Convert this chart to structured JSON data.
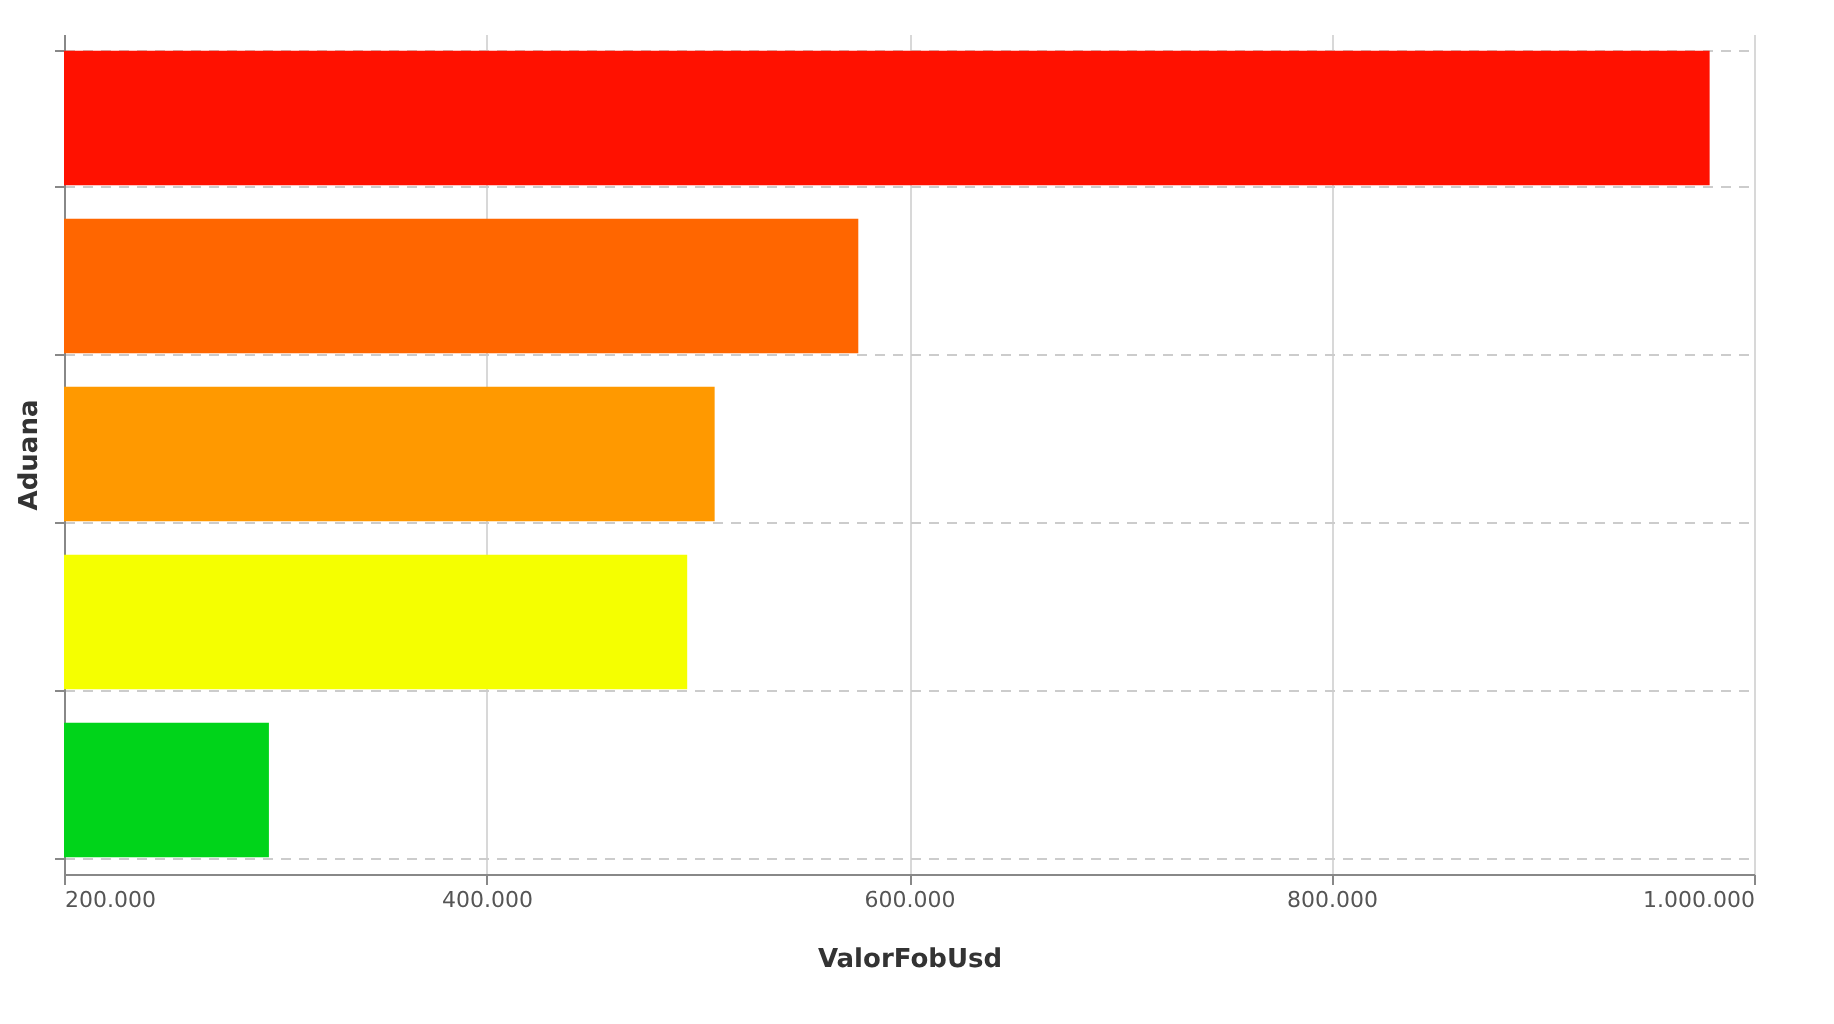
{
  "chart_data": {
    "type": "bar",
    "orientation": "horizontal",
    "xlabel": "ValorFobUsd",
    "ylabel": "Aduana",
    "categories": [
      null,
      null,
      null,
      null,
      null
    ],
    "values": [
      979000,
      576000,
      508000,
      495000,
      297000
    ],
    "colors": [
      "#ff1100",
      "#ff6600",
      "#ff9900",
      "#f5ff00",
      "#00d41a"
    ],
    "xlim": [
      200000,
      1000000
    ],
    "xticks": [
      {
        "value": 200000,
        "label": "200.000"
      },
      {
        "value": 400000,
        "label": "400.000"
      },
      {
        "value": 600000,
        "label": "600.000"
      },
      {
        "value": 800000,
        "label": "800.000"
      },
      {
        "value": 1000000,
        "label": "1.000.000"
      }
    ],
    "grid": true
  }
}
